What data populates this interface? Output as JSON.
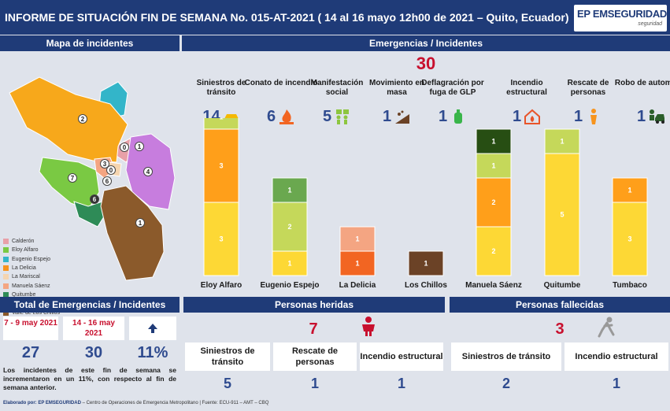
{
  "header": {
    "title": "INFORME DE SITUACIÓN FIN DE SEMANA No. 015-AT-2021 ( 14 al 16 mayo 12h00 de 2021 – Quito, Ecuador)",
    "brand": "EP EMSEGURIDAD",
    "brand_sub": "seguridad"
  },
  "map": {
    "title": "Mapa de incidentes",
    "region_numbers": [
      "2",
      "1",
      "0",
      "3",
      "0",
      "7",
      "6",
      "6",
      "4",
      "1"
    ],
    "legend": [
      {
        "label": "Calderón",
        "color": "#e8a0a8"
      },
      {
        "label": "Eloy Alfaro",
        "color": "#7ac943"
      },
      {
        "label": "Eugenio Espejo",
        "color": "#33b5c9"
      },
      {
        "label": "La Delicia",
        "color": "#f7931e"
      },
      {
        "label": "La Mariscal",
        "color": "#f5d5b0"
      },
      {
        "label": "Manuela Sáenz",
        "color": "#f4a582"
      },
      {
        "label": "Quitumbe",
        "color": "#2e8b57"
      },
      {
        "label": "Tumbaco",
        "color": "#c77dde"
      },
      {
        "label": "Valle de Los Chillos",
        "color": "#8b5a2b"
      }
    ]
  },
  "emergencias": {
    "title": "Emergencias / Incidentes",
    "total": "30",
    "categories": [
      {
        "label": "Siniestros de tránsito",
        "count": "14",
        "icon": "car-crash-icon",
        "icon_color": "#f5b800"
      },
      {
        "label": "Conato de incendio",
        "count": "6",
        "icon": "fire-icon",
        "icon_color": "#f26522"
      },
      {
        "label": "Manifestación social",
        "count": "5",
        "icon": "protest-icon",
        "icon_color": "#8dc63f"
      },
      {
        "label": "Movimiento en masa",
        "count": "1",
        "icon": "landslide-icon",
        "icon_color": "#6b4226"
      },
      {
        "label": "Deflagración por fuga de GLP",
        "count": "1",
        "icon": "gas-tank-icon",
        "icon_color": "#39b54a"
      },
      {
        "label": "Incendio estructural",
        "count": "1",
        "icon": "house-fire-icon",
        "icon_color": "#e8542a"
      },
      {
        "label": "Rescate de personas",
        "count": "1",
        "icon": "rescue-person-icon",
        "icon_color": "#f7941d"
      },
      {
        "label": "Robo de automotor",
        "count": "1",
        "icon": "car-theft-icon",
        "icon_color": "#2a5e2a"
      }
    ]
  },
  "chart_data": {
    "type": "bar",
    "stacked": true,
    "categories": [
      "Eloy Alfaro",
      "Eugenio Espejo",
      "La Delicia",
      "Los Chillos",
      "Manuela Sáenz",
      "Quitumbe",
      "Tumbaco"
    ],
    "series": [
      {
        "key": "siniestros",
        "color": "#fdd835",
        "values": [
          3,
          1,
          0,
          0,
          2,
          5,
          3
        ]
      },
      {
        "key": "conato",
        "color": "#ff9f1a",
        "values": [
          3,
          0,
          0,
          0,
          2,
          0,
          1
        ]
      },
      {
        "key": "manifestacion",
        "color": "#c5d85a",
        "values": [
          1,
          2,
          0,
          0,
          1,
          1,
          0
        ]
      },
      {
        "key": "movimiento",
        "color": "#6b4226",
        "values": [
          0,
          0,
          0,
          1,
          0,
          0,
          0
        ]
      },
      {
        "key": "deflagracion",
        "color": "#6aa84f",
        "values": [
          0,
          1,
          0,
          0,
          0,
          0,
          0
        ]
      },
      {
        "key": "incendio",
        "color": "#f26522",
        "values": [
          0,
          0,
          1,
          0,
          0,
          0,
          0
        ]
      },
      {
        "key": "rescate",
        "color": "#f4a582",
        "values": [
          0,
          0,
          1,
          0,
          0,
          0,
          0
        ]
      },
      {
        "key": "robo",
        "color": "#274e13",
        "values": [
          0,
          0,
          0,
          0,
          1,
          0,
          0
        ]
      }
    ],
    "ylim": [
      0,
      7
    ]
  },
  "total": {
    "title": "Total de Emergencias / Incidentes",
    "period1": "7 - 9 may 2021",
    "period2": "14 - 16 may 2021",
    "value1": "27",
    "value2": "30",
    "change": "11%",
    "arrow": "arrow-up-icon",
    "note": "Los incidentes de este fin de semana se incrementaron en un 11%, con respecto al fin de semana anterior."
  },
  "heridas": {
    "title": "Personas heridas",
    "total": "7",
    "cols": [
      {
        "label": "Siniestros de tránsito",
        "value": "5"
      },
      {
        "label": "Rescate de personas",
        "value": "1"
      },
      {
        "label": "Incendio estructural",
        "value": "1"
      }
    ]
  },
  "fallecidas": {
    "title": "Personas fallecidas",
    "total": "3",
    "cols": [
      {
        "label": "Siniestros de tránsito",
        "value": "2"
      },
      {
        "label": "Incendio estructural",
        "value": "1"
      }
    ]
  },
  "footer": {
    "prefix": "Elaborado por: EP EMSEGURIDAD",
    "rest": " – Centro de Operaciones de Emergencia Metropolitano | Fuente: ECU-911 – AMT – CBQ"
  }
}
